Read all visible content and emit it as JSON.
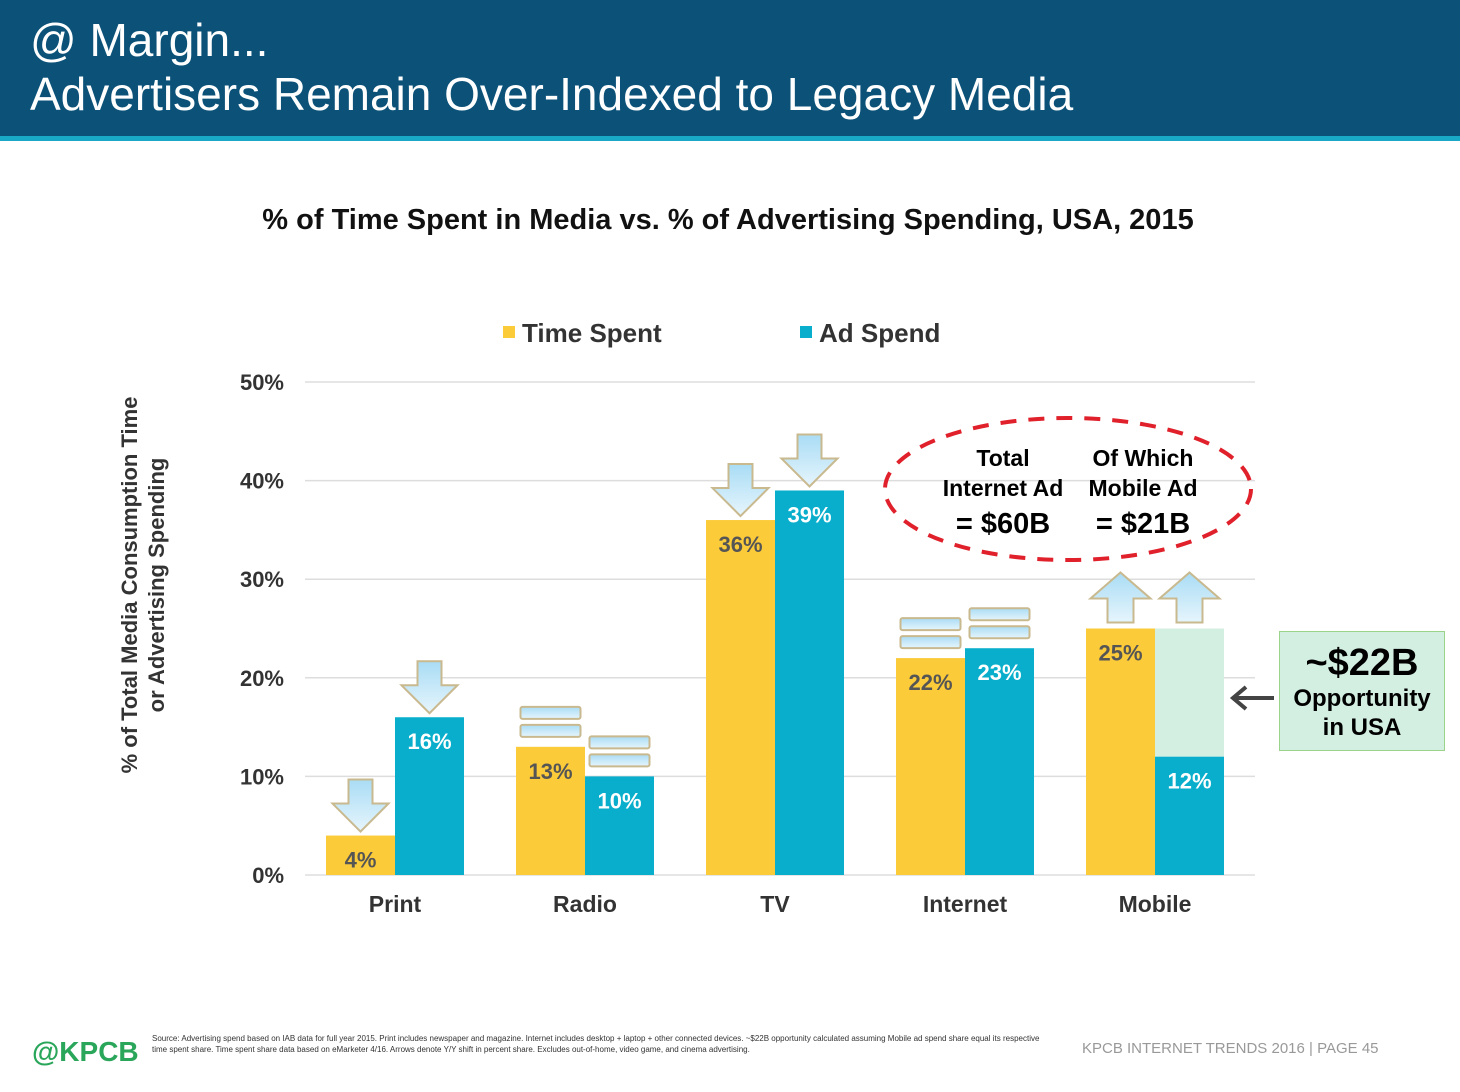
{
  "header": {
    "line1": "@ Margin...",
    "line2": "Advertisers Remain Over-Indexed to Legacy Media"
  },
  "chart_data": {
    "type": "bar",
    "title": "% of Time Spent in Media vs. % of Advertising Spending, USA, 2015",
    "ylabel_line1": "% of Total Media Consumption Time",
    "ylabel_line2": "or Advertising Spending",
    "xlabel": "",
    "ylim": [
      0,
      50
    ],
    "yticks": [
      "0%",
      "10%",
      "20%",
      "30%",
      "40%",
      "50%"
    ],
    "grid": true,
    "legend_placement": "top",
    "categories": [
      "Print",
      "Radio",
      "TV",
      "Internet",
      "Mobile"
    ],
    "series": [
      {
        "name": "Time Spent",
        "color": "#fccb3a",
        "values": [
          4,
          13,
          36,
          22,
          25
        ],
        "labels": [
          "4%",
          "13%",
          "36%",
          "22%",
          "25%"
        ],
        "yoy_shift": [
          "down",
          "flat",
          "down",
          "flat",
          "up"
        ]
      },
      {
        "name": "Ad Spend",
        "color": "#08aecb",
        "values": [
          16,
          10,
          39,
          23,
          12
        ],
        "labels": [
          "16%",
          "10%",
          "39%",
          "23%",
          "12%"
        ],
        "yoy_shift": [
          "down",
          "flat",
          "down",
          "flat",
          "up"
        ]
      }
    ],
    "mobile_gap": {
      "from": 12,
      "to": 25,
      "color": "#d3efe2"
    },
    "callout_oval": {
      "col1": [
        "Total",
        "Internet Ad",
        "= $60B"
      ],
      "col2": [
        "Of Which",
        "Mobile Ad",
        "= $21B"
      ],
      "color": "#e0202a"
    },
    "opportunity": {
      "amount": "~$22B",
      "line1": "Opportunity",
      "line2": "in USA"
    }
  },
  "footer": {
    "logo": "@KPCB",
    "source": "Source: Advertising spend based on IAB data for full year 2015. Print includes newspaper and magazine. Internet includes desktop + laptop + other connected devices. ~$22B opportunity calculated assuming Mobile ad spend share equal its respective time spent share. Time spent share data based on eMarketer 4/16. Arrows denote Y/Y shift in percent share. Excludes out-of-home, video game, and cinema advertising.",
    "page": "KPCB INTERNET TRENDS 2016  |  PAGE 45"
  }
}
